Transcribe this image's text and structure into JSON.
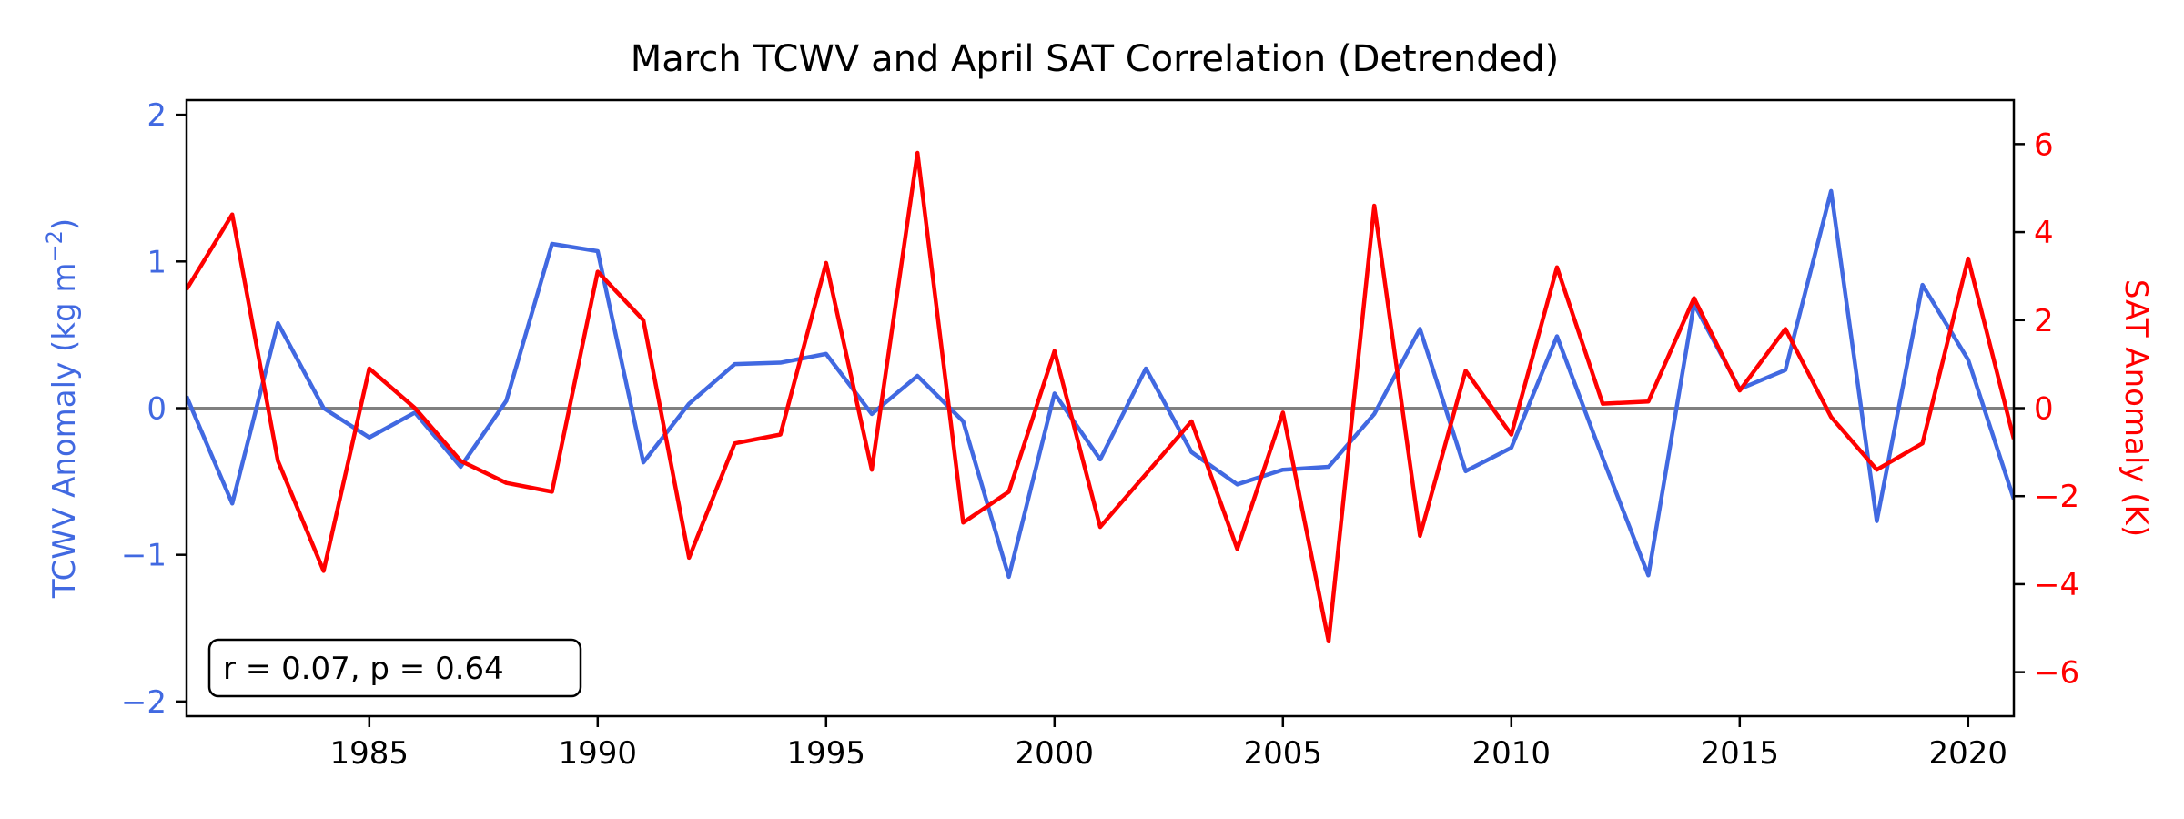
{
  "chart_data": {
    "type": "line",
    "title": "March TCWV and April SAT Correlation (Detrended)",
    "xlim": [
      1981,
      2021
    ],
    "x_ticks": [
      1985,
      1990,
      1995,
      2000,
      2005,
      2010,
      2015,
      2020
    ],
    "x": [
      1981,
      1982,
      1983,
      1984,
      1985,
      1986,
      1987,
      1988,
      1989,
      1990,
      1991,
      1992,
      1993,
      1994,
      1995,
      1996,
      1997,
      1998,
      1999,
      2000,
      2001,
      2002,
      2003,
      2004,
      2005,
      2006,
      2007,
      2008,
      2009,
      2010,
      2011,
      2012,
      2013,
      2014,
      2015,
      2016,
      2017,
      2018,
      2019,
      2020,
      2021
    ],
    "left_axis": {
      "label": "TCWV Anomaly (kg m",
      "label_superscript": "−2",
      "label_suffix": ")",
      "ylim": [
        -2.1,
        2.1
      ],
      "ticks": [
        2,
        1,
        0,
        -1,
        -2
      ],
      "tick_labels": [
        "2",
        "1",
        "0",
        "−1",
        "−2"
      ],
      "color": "#4169e1"
    },
    "right_axis": {
      "label": "SAT Anomaly (K)",
      "ylim": [
        -7.0,
        7.0
      ],
      "ticks": [
        6,
        4,
        2,
        0,
        -2,
        -4,
        -6
      ],
      "tick_labels": [
        "6",
        "4",
        "2",
        "0",
        "−2",
        "−4",
        "−6"
      ],
      "color": "#ff0000"
    },
    "series": [
      {
        "axis": "left",
        "color": "#4169e1",
        "values": [
          0.08,
          -0.65,
          0.58,
          0.0,
          -0.2,
          -0.03,
          -0.4,
          0.05,
          1.12,
          1.07,
          -0.37,
          0.03,
          0.3,
          0.31,
          0.37,
          -0.04,
          0.22,
          -0.09,
          -1.15,
          0.1,
          -0.35,
          0.27,
          -0.3,
          -0.52,
          -0.42,
          -0.4,
          -0.04,
          0.54,
          -0.43,
          -0.27,
          0.49,
          -0.34,
          -1.14,
          0.71,
          0.13,
          0.26,
          1.48,
          -0.77,
          0.84,
          0.33,
          -0.62
        ]
      },
      {
        "axis": "right",
        "color": "#ff0000",
        "values": [
          2.7,
          4.4,
          -1.2,
          -3.7,
          0.9,
          0.0,
          -1.2,
          -1.7,
          -1.9,
          3.1,
          2.0,
          -3.4,
          -0.8,
          -0.6,
          3.3,
          -1.4,
          5.8,
          -2.6,
          -1.9,
          1.3,
          -2.7,
          -1.5,
          -0.3,
          -3.2,
          -0.1,
          -5.3,
          4.6,
          -2.9,
          0.85,
          -0.6,
          3.2,
          0.1,
          0.15,
          2.5,
          0.4,
          1.8,
          -0.2,
          -1.4,
          -0.8,
          3.4,
          -0.7
        ]
      }
    ],
    "zero_line": {
      "value": 0,
      "color": "#808080"
    },
    "annotation": "r = 0.07, p = 0.64",
    "grid": false
  }
}
